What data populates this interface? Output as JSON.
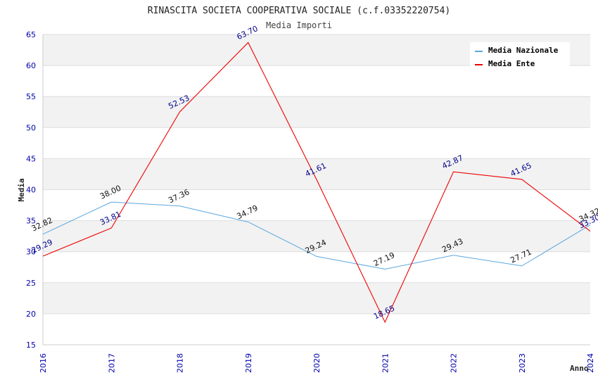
{
  "chart_data": {
    "type": "line",
    "title": "RINASCITA SOCIETA COOPERATIVA SOCIALE (c.f.03352220754)",
    "subtitle": "Media Importi",
    "xlabel": "Anno",
    "ylabel": "Media",
    "ylim": [
      15,
      65
    ],
    "yticks": [
      15,
      20,
      25,
      30,
      35,
      40,
      45,
      50,
      55,
      60,
      65
    ],
    "grid": true,
    "legend_position": "top-right",
    "categories": [
      "2016",
      "2017",
      "2018",
      "2019",
      "2020",
      "2021",
      "2022",
      "2023",
      "2024"
    ],
    "series": [
      {
        "name": "Media Nazionale",
        "color": "#5aa7e0",
        "values": [
          32.82,
          38.0,
          37.36,
          34.79,
          29.24,
          27.19,
          29.43,
          27.71,
          34.32
        ],
        "labels": [
          "32.82",
          "38.00",
          "37.36",
          "34.79",
          "29.24",
          "27.19",
          "29.43",
          "27.71",
          "34.32"
        ]
      },
      {
        "name": "Media Ente",
        "color": "#ee0000",
        "values": [
          29.29,
          33.81,
          52.53,
          63.7,
          41.61,
          18.65,
          42.87,
          41.65,
          33.3
        ],
        "labels": [
          "29.29",
          "33.81",
          "52.53",
          "63.70",
          "41.61",
          "18.65",
          "42.87",
          "41.65",
          "33.30"
        ]
      }
    ]
  }
}
